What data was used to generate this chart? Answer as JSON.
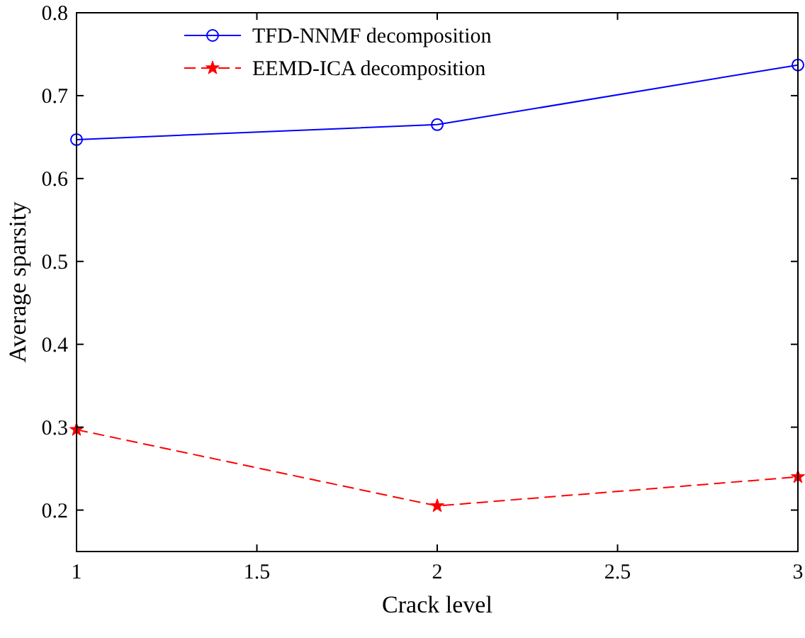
{
  "chart_data": {
    "type": "line",
    "xlabel": "Crack level",
    "ylabel": "Average sparsity",
    "x": [
      1,
      2,
      3
    ],
    "xlim": [
      1,
      3
    ],
    "xticks": [
      1,
      1.5,
      2,
      2.5,
      3
    ],
    "ylim": [
      0.15,
      0.8
    ],
    "yticks": [
      0.2,
      0.3,
      0.4,
      0.5,
      0.6,
      0.7,
      0.8
    ],
    "grid": false,
    "legend": "top",
    "series": [
      {
        "name": "TFD-NNMF decomposition",
        "color": "#0000ff",
        "values": [
          0.647,
          0.665,
          0.737
        ],
        "marker": "circle",
        "line_style": "solid"
      },
      {
        "name": "EEMD-ICA decomposition",
        "color": "#ff0000",
        "values": [
          0.297,
          0.205,
          0.24
        ],
        "marker": "star",
        "line_style": "dashed"
      }
    ]
  }
}
